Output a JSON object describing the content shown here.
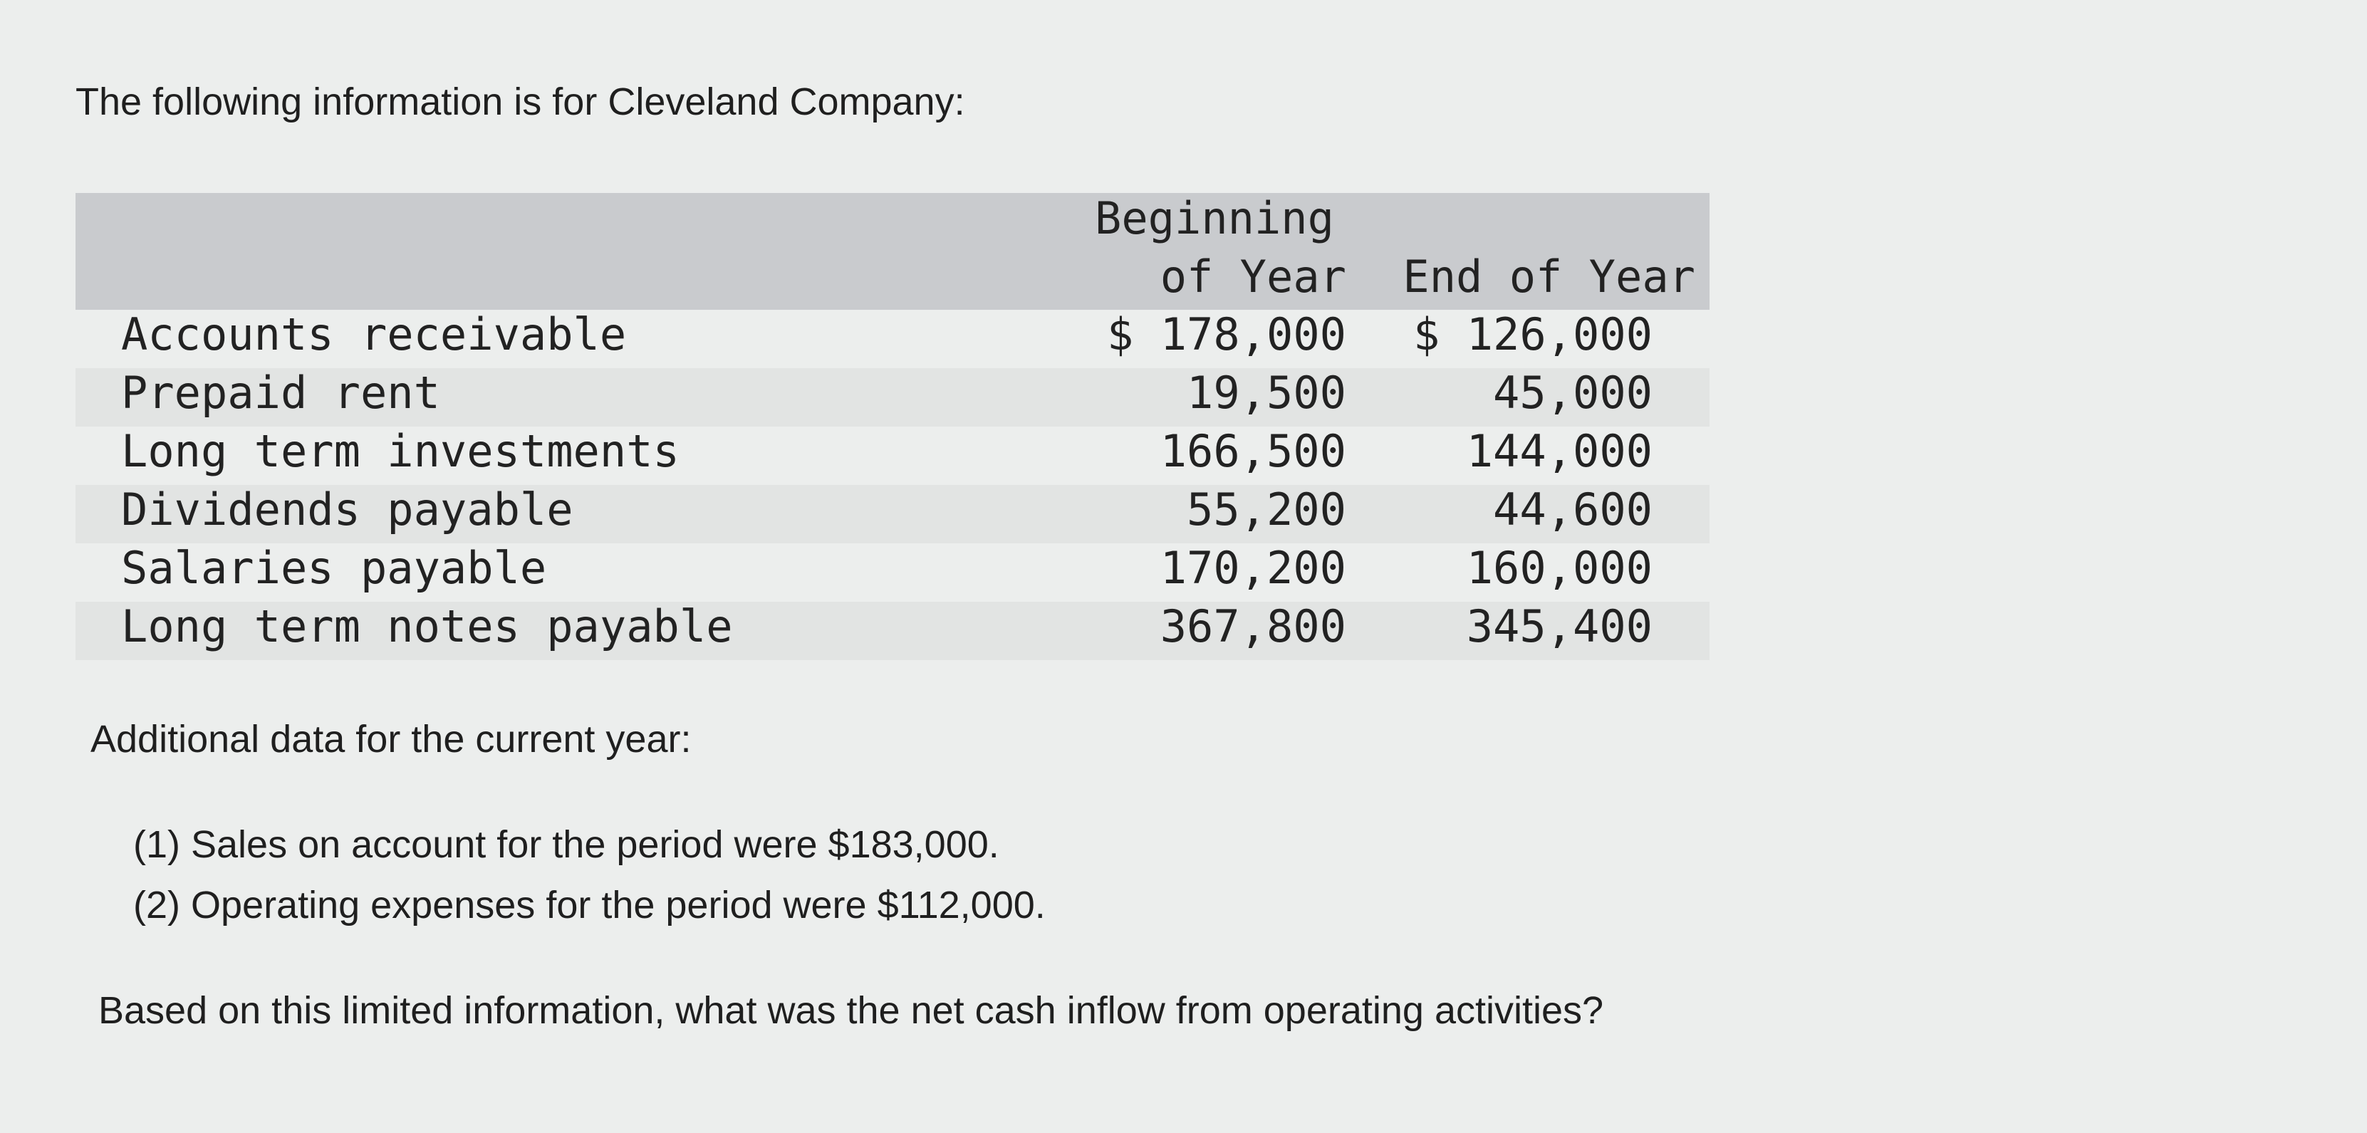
{
  "intro": "The following information is for Cleveland Company:",
  "table": {
    "header": {
      "beginning_line1": "Beginning",
      "beginning_line2": "of Year",
      "end": "End of Year"
    },
    "rows": [
      [
        "Accounts receivable",
        "$ 178,000",
        "$ 126,000"
      ],
      [
        "Prepaid rent",
        "19,500",
        "45,000"
      ],
      [
        "Long term investments",
        "166,500",
        "144,000"
      ],
      [
        "Dividends payable",
        "55,200",
        "44,600"
      ],
      [
        "Salaries payable",
        "170,200",
        "160,000"
      ],
      [
        "Long term notes payable",
        "367,800",
        "345,400"
      ]
    ]
  },
  "additional": {
    "heading": "Additional data for the current year:",
    "items": [
      "(1) Sales on account for the period were $183,000.",
      "(2) Operating expenses for the period were $112,000."
    ]
  },
  "question": "Based on this limited information, what was the net cash inflow from operating activities?"
}
